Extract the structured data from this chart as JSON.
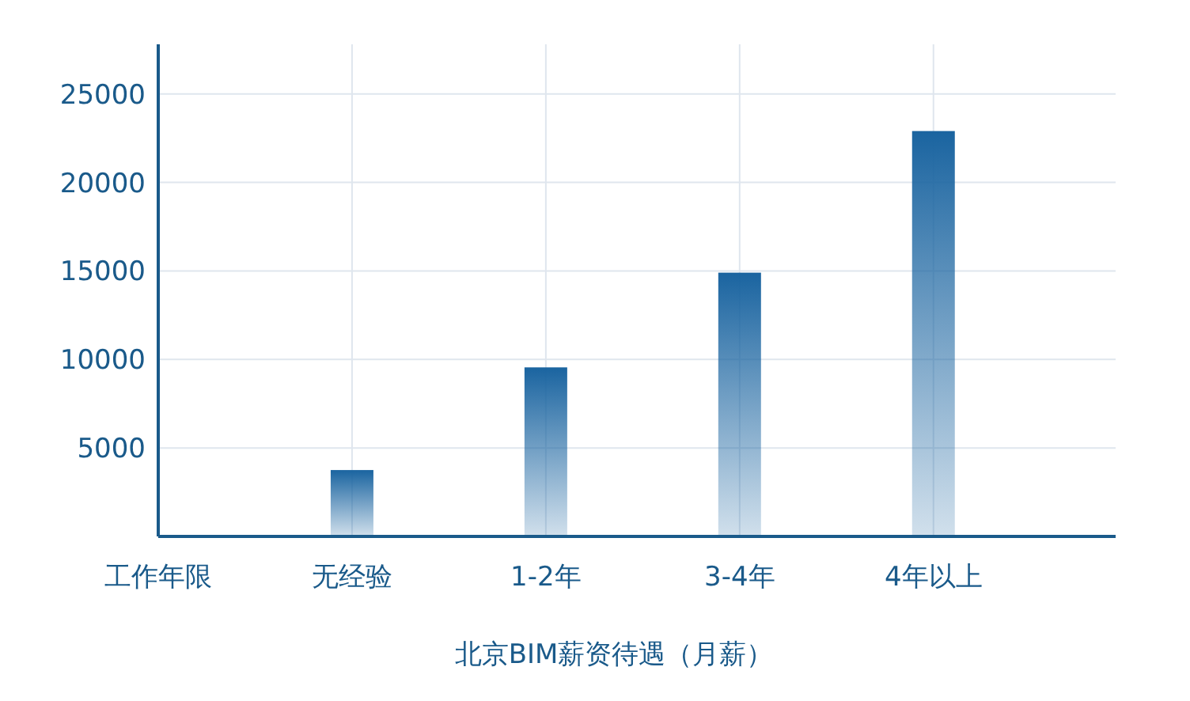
{
  "chart_data": {
    "type": "bar",
    "xlabel": "北京BIM薪资待遇（月薪）",
    "categories": [
      "工作年限",
      "无经验",
      "1-2年",
      "3-4年",
      "4年以上"
    ],
    "values": [
      null,
      3750,
      9550,
      14900,
      22900
    ],
    "color": "#1a64a0",
    "ylim": [
      0,
      27800
    ],
    "yticks": [
      5000,
      10000,
      15000,
      20000,
      25000
    ],
    "grid": true
  }
}
